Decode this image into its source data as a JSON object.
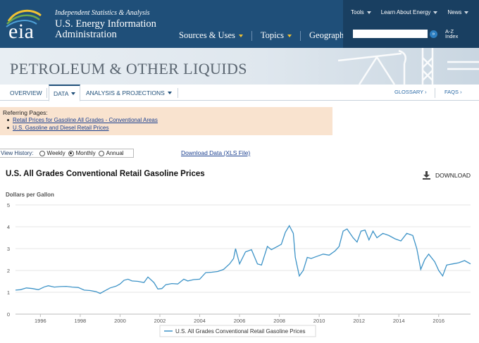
{
  "brand": {
    "logo_text": "eia",
    "tagline": "Independent Statistics & Analysis",
    "agency_line1": "U.S. Energy Information",
    "agency_line2": "Administration"
  },
  "main_nav": [
    "Sources & Uses",
    "Topics",
    "Geography"
  ],
  "util_nav": [
    "Tools",
    "Learn About Energy",
    "News"
  ],
  "search": {
    "placeholder": "",
    "button_glyph": "»",
    "az_line1": "A-Z",
    "az_line2": "Index"
  },
  "section_title": "PETROLEUM & OTHER LIQUIDS",
  "tabs": {
    "overview": "OVERVIEW",
    "data": "DATA",
    "analysis": "ANALYSIS & PROJECTIONS",
    "glossary": "GLOSSARY ›",
    "faqs": "FAQS ›"
  },
  "referring": {
    "heading": "Referring Pages:",
    "links": [
      "Retail Prices for Gasoline All Grades - Conventional Areas",
      "U.S. Gasoline and Diesel Retail Prices"
    ]
  },
  "view_history": {
    "label": "View History:",
    "options": [
      "Weekly",
      "Monthly",
      "Annual"
    ],
    "selected": "Monthly"
  },
  "download_data_link": "Download Data (XLS File)",
  "download_button": "DOWNLOAD",
  "colors": {
    "header": "#1f4f79",
    "accent": "#f1c232",
    "series": "#3d93c7"
  },
  "chart_data": {
    "type": "line",
    "title": "U.S. All Grades Conventional Retail Gasoline Prices",
    "ylabel": "Dollars per Gallon",
    "xlabel": "",
    "ylim": [
      0,
      5
    ],
    "yticks": [
      0,
      1,
      2,
      3,
      4,
      5
    ],
    "xlim": [
      1994.75,
      2017.6
    ],
    "xticks": [
      1996,
      1998,
      2000,
      2002,
      2004,
      2006,
      2008,
      2010,
      2012,
      2014,
      2016
    ],
    "legend": "bottom-center",
    "series": [
      {
        "name": "U.S. All Grades Conventional Retail Gasoline Prices",
        "x": [
          1994.75,
          1995.0,
          1995.3,
          1995.6,
          1995.9,
          1996.2,
          1996.4,
          1996.7,
          1997.0,
          1997.3,
          1997.6,
          1997.9,
          1998.2,
          1998.5,
          1998.8,
          1999.0,
          1999.2,
          1999.5,
          1999.8,
          2000.0,
          2000.2,
          2000.4,
          2000.6,
          2000.9,
          2001.2,
          2001.4,
          2001.7,
          2001.9,
          2002.1,
          2002.3,
          2002.6,
          2002.9,
          2003.2,
          2003.4,
          2003.7,
          2004.0,
          2004.3,
          2004.6,
          2004.9,
          2005.2,
          2005.5,
          2005.7,
          2005.8,
          2006.0,
          2006.3,
          2006.6,
          2006.9,
          2007.1,
          2007.4,
          2007.6,
          2007.9,
          2008.1,
          2008.3,
          2008.5,
          2008.7,
          2008.8,
          2009.0,
          2009.2,
          2009.4,
          2009.6,
          2009.9,
          2010.2,
          2010.5,
          2010.8,
          2011.0,
          2011.2,
          2011.4,
          2011.7,
          2011.9,
          2012.1,
          2012.3,
          2012.5,
          2012.7,
          2012.9,
          2013.2,
          2013.5,
          2013.8,
          2014.1,
          2014.4,
          2014.7,
          2014.9,
          2015.1,
          2015.3,
          2015.5,
          2015.8,
          2016.0,
          2016.2,
          2016.4,
          2016.7,
          2017.0,
          2017.3,
          2017.6
        ],
        "values": [
          1.1,
          1.12,
          1.2,
          1.17,
          1.12,
          1.25,
          1.3,
          1.24,
          1.26,
          1.27,
          1.24,
          1.22,
          1.1,
          1.08,
          1.03,
          0.95,
          1.05,
          1.2,
          1.28,
          1.38,
          1.55,
          1.6,
          1.52,
          1.5,
          1.45,
          1.7,
          1.45,
          1.15,
          1.17,
          1.35,
          1.4,
          1.38,
          1.6,
          1.52,
          1.58,
          1.6,
          1.9,
          1.92,
          1.95,
          2.05,
          2.3,
          2.55,
          3.0,
          2.3,
          2.85,
          2.95,
          2.3,
          2.25,
          3.1,
          2.95,
          3.1,
          3.2,
          3.75,
          4.05,
          3.7,
          2.6,
          1.75,
          2.0,
          2.6,
          2.55,
          2.65,
          2.75,
          2.7,
          2.9,
          3.1,
          3.8,
          3.9,
          3.5,
          3.3,
          3.8,
          3.85,
          3.4,
          3.8,
          3.5,
          3.7,
          3.6,
          3.45,
          3.35,
          3.7,
          3.6,
          3.0,
          2.05,
          2.5,
          2.75,
          2.4,
          2.0,
          1.75,
          2.25,
          2.3,
          2.35,
          2.45,
          2.3
        ]
      }
    ]
  }
}
